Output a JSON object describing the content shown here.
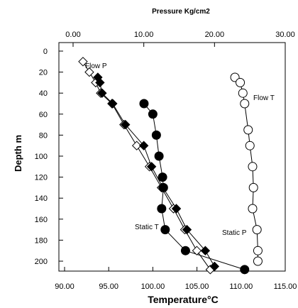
{
  "chart_data": {
    "type": "scatter",
    "top_axis": {
      "label": "Pressure  Kg/cm2",
      "range": [
        0,
        30
      ],
      "ticks": [
        "0.00",
        "10.00",
        "20.00",
        "30.00"
      ],
      "tick_values": [
        0,
        10,
        20,
        30
      ]
    },
    "bottom_axis": {
      "label": "Temperature°C",
      "range": [
        90,
        115
      ],
      "ticks": [
        "90.00",
        "95.00",
        "100.00",
        "105.00",
        "110.00",
        "115.00"
      ],
      "tick_values": [
        90,
        95,
        100,
        105,
        110,
        115
      ]
    },
    "y_axis": {
      "label": "Depth  m",
      "range": [
        0,
        210
      ],
      "inverted": true,
      "ticks": [
        "0",
        "20",
        "40",
        "60",
        "80",
        "100",
        "120",
        "140",
        "160",
        "180",
        "200"
      ],
      "tick_values": [
        0,
        20,
        40,
        60,
        80,
        100,
        120,
        140,
        160,
        180,
        200
      ]
    },
    "annotations": [
      {
        "text": "Flow P",
        "target": "flow_p",
        "dx": 4,
        "dy": 2
      },
      {
        "text": "Flow T",
        "target": "flow_t",
        "dx": 3,
        "dy": 1
      },
      {
        "text": "Static T",
        "target": "static_t",
        "dx": -8,
        "dy": 3
      },
      {
        "text": "Static P",
        "target": "static_p",
        "dx": 1,
        "dy": 3
      }
    ],
    "series": [
      {
        "key": "flow_p",
        "axis": "top",
        "marker": "diamond-open",
        "connected": true,
        "points": [
          [
            1.4,
            10
          ],
          [
            2.3,
            20
          ],
          [
            3.2,
            30
          ],
          [
            3.9,
            40
          ],
          [
            5.5,
            50
          ],
          [
            7.2,
            70
          ],
          [
            9.0,
            90
          ],
          [
            10.8,
            110
          ],
          [
            12.5,
            130
          ],
          [
            14.2,
            150
          ],
          [
            15.8,
            170
          ],
          [
            17.5,
            190
          ],
          [
            19.4,
            208
          ]
        ]
      },
      {
        "key": "static_p",
        "axis": "top",
        "marker": "diamond-filled",
        "connected": true,
        "points": [
          [
            3.5,
            25
          ],
          [
            3.8,
            30
          ],
          [
            4.1,
            40
          ],
          [
            5.6,
            50
          ],
          [
            7.4,
            70
          ],
          [
            10.0,
            90
          ],
          [
            11.1,
            110
          ],
          [
            12.7,
            130
          ],
          [
            14.6,
            150
          ],
          [
            16.1,
            170
          ],
          [
            18.7,
            190
          ],
          [
            20.0,
            205
          ]
        ]
      },
      {
        "key": "flow_t",
        "axis": "bottom",
        "marker": "circle-open",
        "connected": true,
        "points": [
          [
            109.3,
            25
          ],
          [
            109.9,
            30
          ],
          [
            110.2,
            40
          ],
          [
            110.4,
            50
          ],
          [
            110.8,
            75
          ],
          [
            111.0,
            90
          ],
          [
            111.3,
            110
          ],
          [
            111.4,
            130
          ],
          [
            111.3,
            150
          ],
          [
            111.8,
            170
          ],
          [
            111.9,
            190
          ],
          [
            111.9,
            200
          ]
        ]
      },
      {
        "key": "static_t",
        "axis": "bottom",
        "marker": "circle-filled",
        "connected": true,
        "points": [
          [
            99.0,
            50
          ],
          [
            100.0,
            60
          ],
          [
            100.4,
            80
          ],
          [
            100.7,
            100
          ],
          [
            101.1,
            120
          ],
          [
            101.2,
            130
          ],
          [
            101.0,
            150
          ],
          [
            101.4,
            170
          ],
          [
            103.7,
            190
          ],
          [
            110.4,
            208
          ]
        ]
      }
    ]
  }
}
